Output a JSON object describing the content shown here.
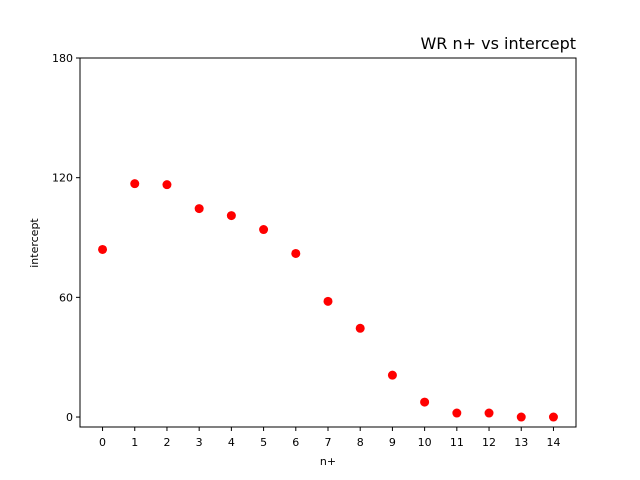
{
  "chart_data": {
    "type": "scatter",
    "title": "WR n+ vs intercept",
    "xlabel": "n+",
    "ylabel": "intercept",
    "x": [
      0,
      1,
      2,
      3,
      4,
      5,
      6,
      7,
      8,
      9,
      10,
      11,
      12,
      13,
      14
    ],
    "y": [
      84,
      117,
      116.5,
      104.5,
      101,
      94,
      82,
      58,
      44.5,
      21,
      7.5,
      2,
      2,
      0,
      0
    ],
    "xticks": [
      "0",
      "1",
      "2",
      "3",
      "4",
      "5",
      "6",
      "7",
      "8",
      "9",
      "10",
      "11",
      "12",
      "13",
      "14"
    ],
    "yticks": [
      "0",
      "60",
      "120",
      "180"
    ],
    "xlim": [
      -0.7,
      14.7
    ],
    "ylim": [
      -5,
      180
    ],
    "marker_color": "#ff0000",
    "grid": false
  }
}
